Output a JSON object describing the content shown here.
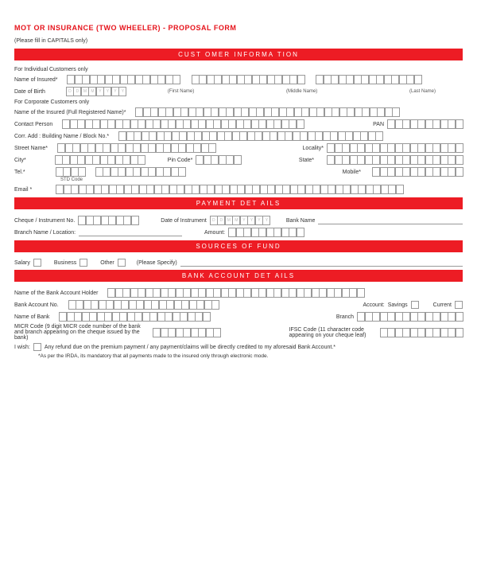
{
  "title": "MOT OR INSURANCE (TWO WHEELER) - PROPOSAL        FORM",
  "capitals": "(Please fill in CAPITALS only)",
  "sections": {
    "customer": "CUST  OMER INFORMA   TION",
    "payment": "PAYMENT DET    AILS",
    "sources": "SOURCES OF FUND",
    "bank": "BANK  ACCOUNT DET   AILS"
  },
  "labels": {
    "forIndividual": "For Individual Customers only",
    "nameInsured": "Name of Insured*",
    "dob": "Date of Birth",
    "firstName": "(First Name)",
    "middleName": "(Middle Name)",
    "lastName": "(Last Name)",
    "forCorporate": "For Corporate Customers only",
    "fullName": "Name of the Insured (Full Registered Name)*",
    "contactPerson": "Contact Person",
    "pan": "PAN",
    "corrAdd": "Corr.  Add : Building Name / Block No.*",
    "street": "Street Name*",
    "locality": "Locality*",
    "city": "City*",
    "pincode": "Pin Code*",
    "state": "State*",
    "tel": "Tel.*",
    "stdCode": "STD Code",
    "mobile": "Mobile*",
    "email": "Email *",
    "cheque": "Cheque / Instrument No.",
    "dateInstr": "Date of Instrument",
    "bankName": "Bank Name",
    "branchLoc": "Branch Name / Location:",
    "amount": "Amount:",
    "salary": "Salary",
    "business": "Business",
    "other": "Other",
    "specify": "(Please Specify)",
    "acctHolder": "Name of the Bank Account Holder",
    "acctNo": "Bank Account No.",
    "account": "Account:",
    "savings": "Savings",
    "current": "Current",
    "nameBank": "Name of Bank",
    "branch": "Branch",
    "micr": "MICR Code (9 digit MICR code number of the bank and branch appearing on the cheque issued by the bank)",
    "ifsc": "IFSC Code (11 character code appearing on your cheque leaf)",
    "wish": "I wish:",
    "wishText": "Any refund due on the premium payment / any payment/claims will be directly credited to my aforesaid Bank Account.*",
    "irda": "*As per the IRDA, its mandatory that all payments made to the insured only through electronic mode."
  },
  "date_placeholder": [
    "D",
    "D",
    "M",
    "M",
    "Y",
    "Y",
    "Y",
    "Y"
  ],
  "boxcounts": {
    "name1": 15,
    "name2": 15,
    "name3": 14,
    "fullname": 35,
    "contact": 32,
    "pan": 10,
    "corr": 35,
    "street": 21,
    "locality": 18,
    "city": 12,
    "pincode": 6,
    "state": 18,
    "tel_std": 4,
    "tel_num": 12,
    "mobile": 12,
    "email": 46,
    "cheque": 8,
    "amount": 10,
    "holder": 34,
    "acctno": 20,
    "bankname2": 20,
    "branch2": 14,
    "micr": 9,
    "ifsc": 11
  }
}
